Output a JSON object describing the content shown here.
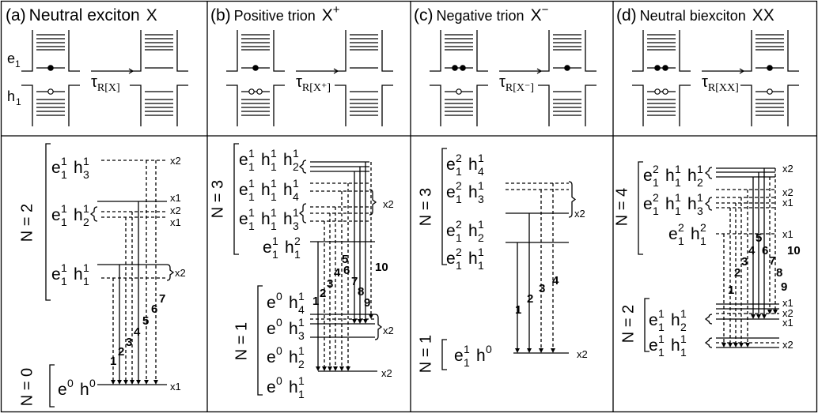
{
  "panels": [
    {
      "title": {
        "letter": "(a)",
        "name": "Neutral exciton",
        "symbol": "X"
      },
      "well_labels": {
        "e": "e",
        "e_sub": "1",
        "h": "h",
        "h_sub": "1"
      },
      "tau": {
        "symbol": "τ",
        "sub": "R[X]"
      },
      "manifolds": [
        {
          "label": "N = 2",
          "levels": [
            [
              {
                "sym": "e",
                "sup": "1",
                "sub": "1"
              },
              {
                "sym": "h",
                "sup": "1",
                "sub": "3"
              }
            ],
            [
              {
                "sym": "e",
                "sup": "1",
                "sub": "1"
              },
              {
                "sym": "h",
                "sup": "1",
                "sub": "2"
              }
            ],
            [
              {
                "sym": "e",
                "sup": "1",
                "sub": "1"
              },
              {
                "sym": "h",
                "sup": "1",
                "sub": "1"
              }
            ]
          ]
        },
        {
          "label": "N = 0",
          "levels": [
            [
              {
                "sym": "e",
                "sup": "0"
              },
              {
                "sym": "h",
                "sup": "0"
              }
            ]
          ]
        }
      ],
      "multiplicities": [
        "x2",
        "x1",
        "x2",
        "x1",
        "x2",
        "x1"
      ],
      "transitions": [
        "1",
        "2",
        "3",
        "4",
        "5",
        "6",
        "7"
      ]
    },
    {
      "title": {
        "letter": "(b)",
        "name": "Positive trion",
        "symbol": "X",
        "charge": "+"
      },
      "tau": {
        "symbol": "τ",
        "sub": "R[X⁺]"
      },
      "manifolds": [
        {
          "label": "N = 3",
          "levels": [
            [
              {
                "sym": "e",
                "sup": "1",
                "sub": "1"
              },
              {
                "sym": "h",
                "sup": "1",
                "sub": "1"
              },
              {
                "sym": "h",
                "sup": "1",
                "sub": "2"
              }
            ],
            [
              {
                "sym": "e",
                "sup": "1",
                "sub": "1"
              },
              {
                "sym": "h",
                "sup": "1",
                "sub": "1"
              },
              {
                "sym": "h",
                "sup": "1",
                "sub": "4"
              }
            ],
            [
              {
                "sym": "e",
                "sup": "1",
                "sub": "1"
              },
              {
                "sym": "h",
                "sup": "1",
                "sub": "1"
              },
              {
                "sym": "h",
                "sup": "1",
                "sub": "3"
              }
            ],
            [
              {
                "sym": "e",
                "sup": "1",
                "sub": "1"
              },
              {
                "sym": "h",
                "sup": "2",
                "sub": "1"
              }
            ]
          ]
        },
        {
          "label": "N = 1",
          "levels": [
            [
              {
                "sym": "e",
                "sup": "0"
              },
              {
                "sym": "h",
                "sup": "1",
                "sub": "4"
              }
            ],
            [
              {
                "sym": "e",
                "sup": "0"
              },
              {
                "sym": "h",
                "sup": "1",
                "sub": "3"
              }
            ],
            [
              {
                "sym": "e",
                "sup": "0"
              },
              {
                "sym": "h",
                "sup": "1",
                "sub": "2"
              }
            ],
            [
              {
                "sym": "e",
                "sup": "0"
              },
              {
                "sym": "h",
                "sup": "1",
                "sub": "1"
              }
            ]
          ]
        }
      ],
      "multiplicities": [
        "x2",
        "x2",
        "x2"
      ],
      "transitions": [
        "1",
        "2",
        "3",
        "4",
        "5",
        "6",
        "7",
        "8",
        "9",
        "10"
      ]
    },
    {
      "title": {
        "letter": "(c)",
        "name": "Negative trion",
        "symbol": "X",
        "charge": "−"
      },
      "tau": {
        "symbol": "τ",
        "sub": "R[X⁻]"
      },
      "manifolds": [
        {
          "label": "N = 3",
          "levels": [
            [
              {
                "sym": "e",
                "sup": "2",
                "sub": "1"
              },
              {
                "sym": "h",
                "sup": "1",
                "sub": "4"
              }
            ],
            [
              {
                "sym": "e",
                "sup": "2",
                "sub": "1"
              },
              {
                "sym": "h",
                "sup": "1",
                "sub": "3"
              }
            ],
            [
              {
                "sym": "e",
                "sup": "2",
                "sub": "1"
              },
              {
                "sym": "h",
                "sup": "1",
                "sub": "2"
              }
            ],
            [
              {
                "sym": "e",
                "sup": "2",
                "sub": "1"
              },
              {
                "sym": "h",
                "sup": "1",
                "sub": "1"
              }
            ]
          ]
        },
        {
          "label": "N = 1",
          "levels": [
            [
              {
                "sym": "e",
                "sup": "1",
                "sub": "1"
              },
              {
                "sym": "h",
                "sup": "0"
              }
            ]
          ]
        }
      ],
      "multiplicities": [
        "x2",
        "x2"
      ],
      "transitions": [
        "1",
        "2",
        "3",
        "4"
      ]
    },
    {
      "title": {
        "letter": "(d)",
        "name": "Neutral biexciton",
        "symbol": "XX"
      },
      "tau": {
        "symbol": "τ",
        "sub": "R[XX]"
      },
      "manifolds": [
        {
          "label": "N = 4",
          "levels": [
            [
              {
                "sym": "e",
                "sup": "2",
                "sub": "1"
              },
              {
                "sym": "h",
                "sup": "1",
                "sub": "1"
              },
              {
                "sym": "h",
                "sup": "1",
                "sub": "2"
              }
            ],
            [
              {
                "sym": "e",
                "sup": "2",
                "sub": "1"
              },
              {
                "sym": "h",
                "sup": "1",
                "sub": "1"
              },
              {
                "sym": "h",
                "sup": "1",
                "sub": "3"
              }
            ],
            [
              {
                "sym": "e",
                "sup": "2",
                "sub": "1"
              },
              {
                "sym": "h",
                "sup": "2",
                "sub": "1"
              }
            ]
          ]
        },
        {
          "label": "N = 2",
          "levels": [
            [
              {
                "sym": "e",
                "sup": "1",
                "sub": "1"
              },
              {
                "sym": "h",
                "sup": "1",
                "sub": "2"
              }
            ],
            [
              {
                "sym": "e",
                "sup": "1",
                "sub": "1"
              },
              {
                "sym": "h",
                "sup": "1",
                "sub": "1"
              }
            ]
          ]
        }
      ],
      "multiplicities": [
        "x2",
        "x2",
        "x1",
        "x1",
        "x1",
        "x2",
        "x1",
        "x2"
      ],
      "transitions": [
        "1",
        "2",
        "3",
        "4",
        "5",
        "6",
        "7",
        "8",
        "9",
        "10"
      ]
    }
  ]
}
